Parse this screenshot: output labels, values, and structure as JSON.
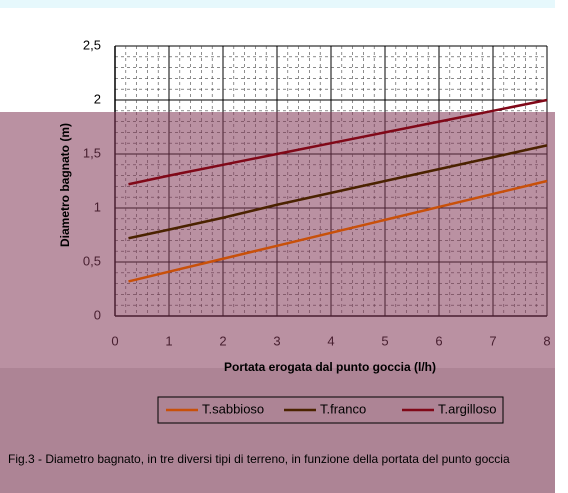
{
  "chart_data": {
    "type": "line",
    "x_label": "Portata erogata dal punto goccia  (l/h)",
    "y_label": "Diametro bagnato (m)",
    "caption": "Fig.3 - Diametro bagnato, in tre diversi tipi di terreno, in funzione della portata del punto goccia",
    "x": [
      0.25,
      1,
      2,
      3,
      4,
      5,
      6,
      7,
      8
    ],
    "series": [
      {
        "name": "T.sabbioso",
        "color": "#c8500a",
        "values": [
          0.32,
          0.41,
          0.53,
          0.65,
          0.77,
          0.89,
          1.01,
          1.13,
          1.25
        ]
      },
      {
        "name": "T.franco",
        "color": "#4a2200",
        "values": [
          0.72,
          0.8,
          0.91,
          1.03,
          1.14,
          1.25,
          1.36,
          1.47,
          1.58
        ]
      },
      {
        "name": "T.argilloso",
        "color": "#800818",
        "values": [
          1.22,
          1.3,
          1.4,
          1.5,
          1.6,
          1.7,
          1.8,
          1.9,
          2.0
        ]
      }
    ],
    "xlim": [
      0,
      8
    ],
    "xticks": [
      0,
      1,
      2,
      3,
      4,
      5,
      6,
      7,
      8
    ],
    "ylim": [
      0,
      2.5
    ],
    "yticks": [
      0,
      {
        "value": 0.5,
        "label": "0,5"
      },
      1,
      {
        "value": 1.5,
        "label": "1,5"
      },
      2,
      {
        "value": 2.5,
        "label": "2,5"
      }
    ],
    "grid": true
  }
}
